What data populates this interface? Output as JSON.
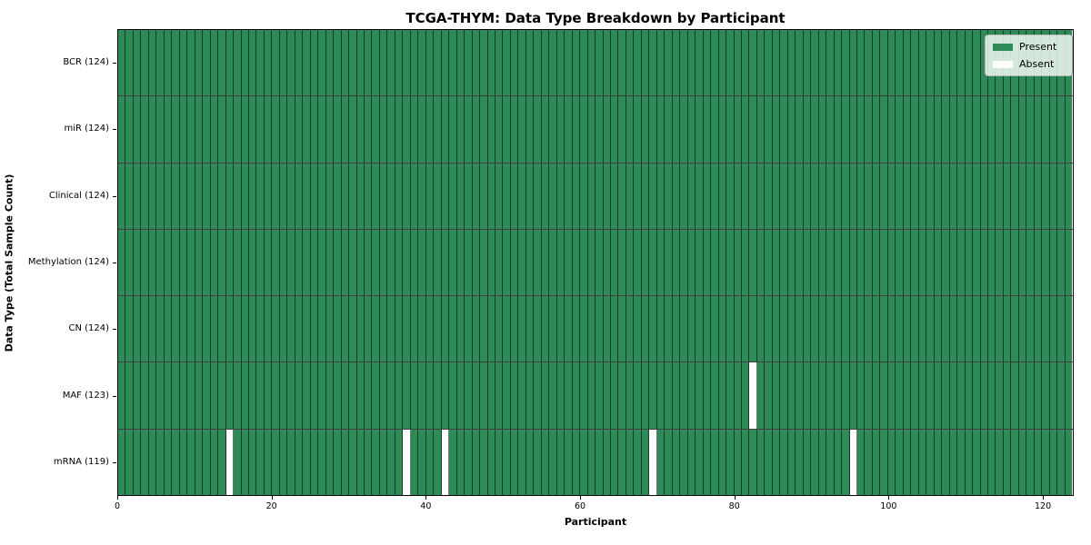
{
  "title": "TCGA-THYM: Data Type Breakdown by Participant",
  "chart_data": {
    "type": "heatmap",
    "title": "TCGA-THYM: Data Type Breakdown by Participant",
    "xlabel": "Participant",
    "ylabel": "Data Type (Total Sample Count)",
    "n_participants": 124,
    "xlim": [
      0,
      124
    ],
    "x_ticks": [
      0,
      20,
      40,
      60,
      80,
      100,
      120
    ],
    "grid": "cell-borders",
    "legend_position": "upper-right",
    "rows": [
      {
        "label": "BCR (124)",
        "data_type": "BCR",
        "present_count": 124,
        "absent_participants": []
      },
      {
        "label": "miR (124)",
        "data_type": "miR",
        "present_count": 124,
        "absent_participants": []
      },
      {
        "label": "Clinical (124)",
        "data_type": "Clinical",
        "present_count": 124,
        "absent_participants": []
      },
      {
        "label": "Methylation (124)",
        "data_type": "Methylation",
        "present_count": 124,
        "absent_participants": []
      },
      {
        "label": "CN (124)",
        "data_type": "CN",
        "present_count": 124,
        "absent_participants": []
      },
      {
        "label": "MAF (123)",
        "data_type": "MAF",
        "present_count": 123,
        "absent_participants": [
          82
        ]
      },
      {
        "label": "mRNA (119)",
        "data_type": "mRNA",
        "present_count": 119,
        "absent_participants": [
          14,
          37,
          42,
          69,
          95
        ]
      }
    ],
    "legend": [
      {
        "label": "Present",
        "color": "#2e8b57"
      },
      {
        "label": "Absent",
        "color": "#ffffff"
      }
    ],
    "colors": {
      "present": "#2e8b57",
      "absent": "#ffffff",
      "spine": "#000000"
    }
  }
}
